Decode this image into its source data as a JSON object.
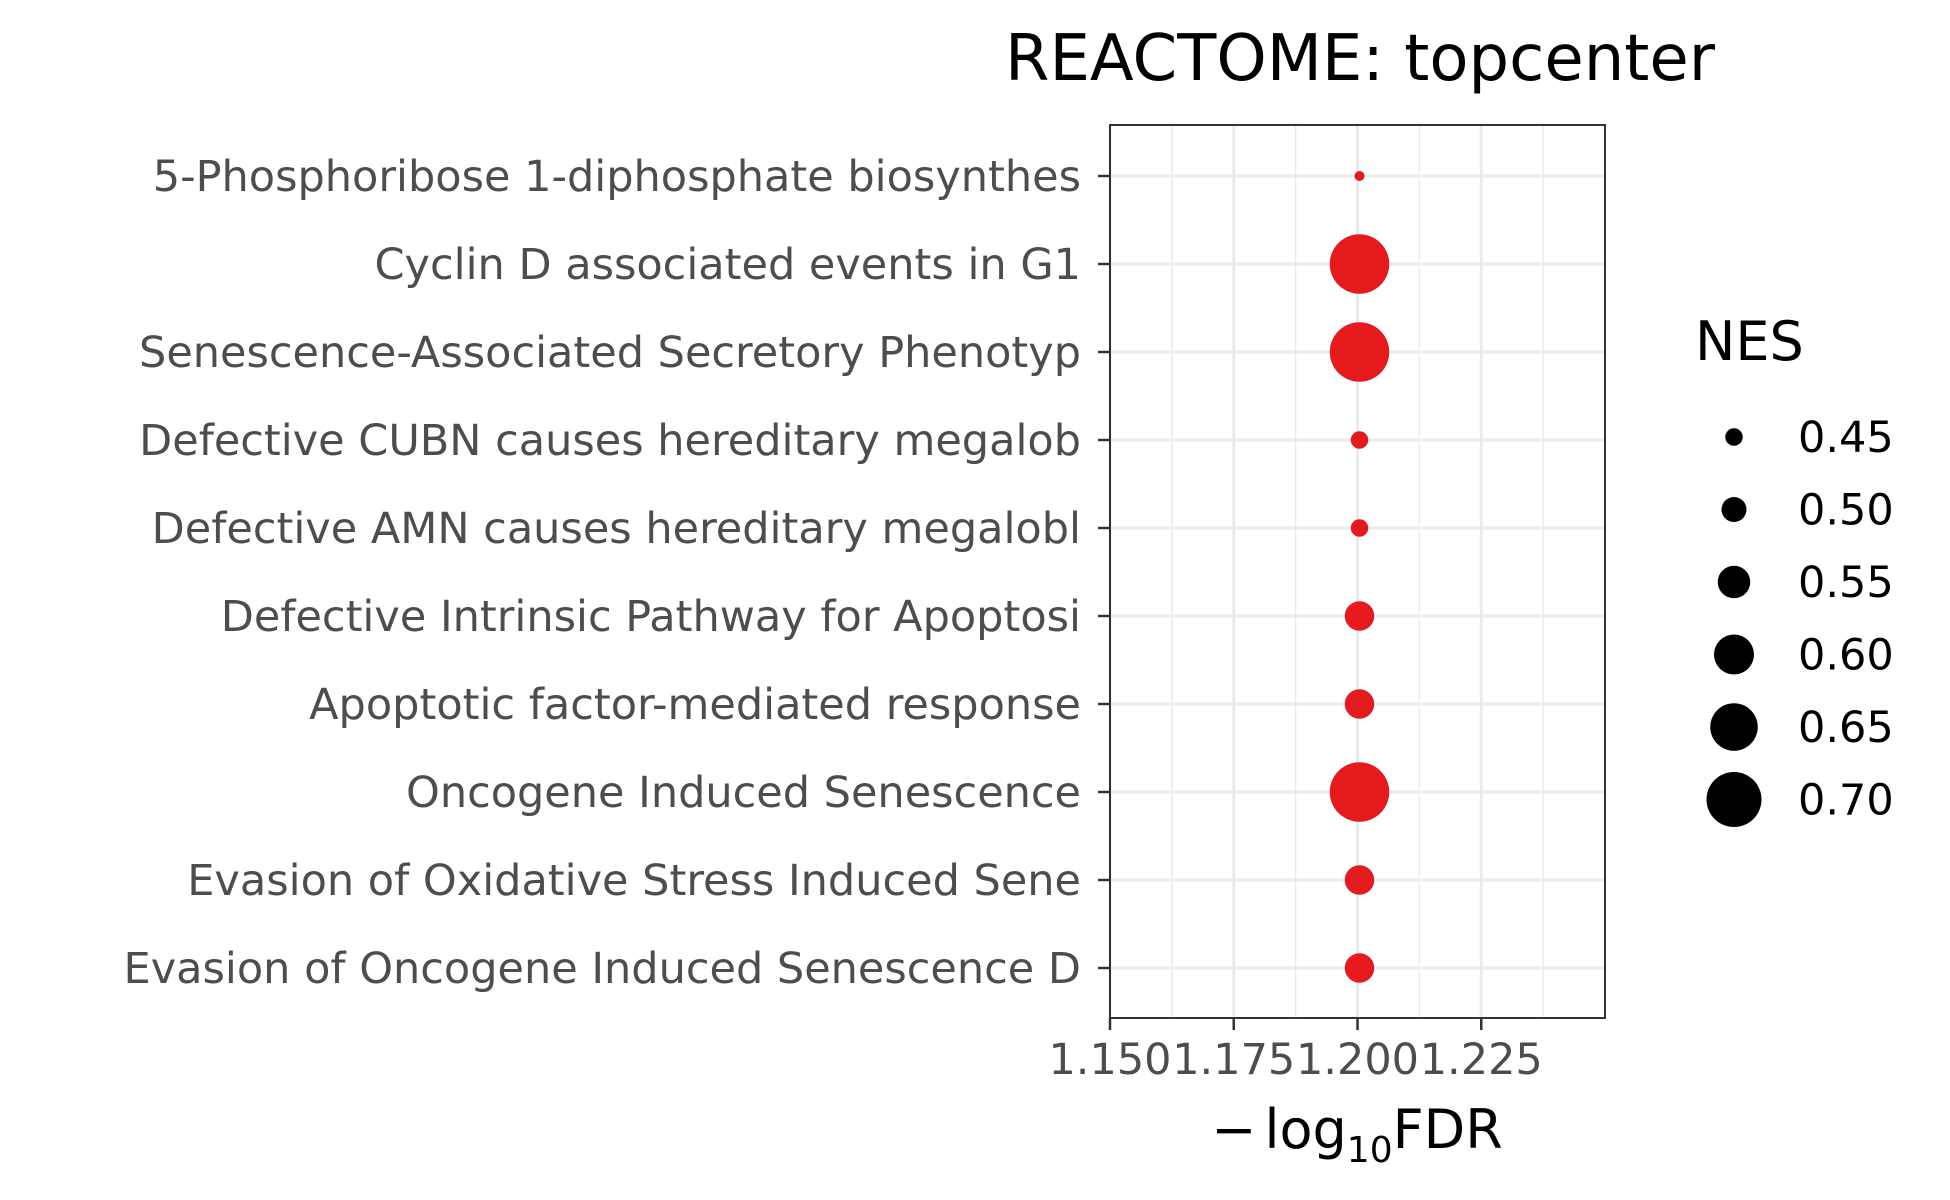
{
  "chart_data": {
    "type": "scatter",
    "title": "REACTOME: topcenter",
    "xlabel": "-log10FDR",
    "xlabel_parts": {
      "sign": "−",
      "log": "log",
      "base": "10",
      "rest": "FDR"
    },
    "ylabel": "",
    "xlim": [
      1.15,
      1.25
    ],
    "xticks": [
      "1.150",
      "1.175",
      "1.200",
      "1.225"
    ],
    "xtick_values": [
      1.15,
      1.175,
      1.2,
      1.225
    ],
    "grid": true,
    "point_color": "#e41a1c",
    "categories": [
      "5-Phosphoribose 1-diphosphate biosynthes",
      "Cyclin D associated events in G1",
      "Senescence-Associated Secretory Phenotyp",
      "Defective CUBN causes hereditary megalob",
      "Defective AMN causes hereditary megalobl",
      "Defective Intrinsic Pathway for Apoptosi",
      "Apoptotic factor-mediated response",
      "Oncogene Induced Senescence",
      "Evasion of Oxidative Stress Induced Sene",
      "Evasion of Oncogene Induced Senescence D"
    ],
    "x": [
      1.2,
      1.2,
      1.2,
      1.2,
      1.2,
      1.2,
      1.2,
      1.2,
      1.2,
      1.2
    ],
    "size": [
      0.4,
      0.73,
      0.73,
      0.45,
      0.45,
      0.53,
      0.53,
      0.73,
      0.53,
      0.53
    ],
    "legend": {
      "title": "NES",
      "position": "right",
      "color": "#000000",
      "entries": [
        "0.45",
        "0.50",
        "0.55",
        "0.60",
        "0.65",
        "0.70"
      ],
      "values": [
        0.45,
        0.5,
        0.55,
        0.6,
        0.65,
        0.7
      ]
    }
  }
}
